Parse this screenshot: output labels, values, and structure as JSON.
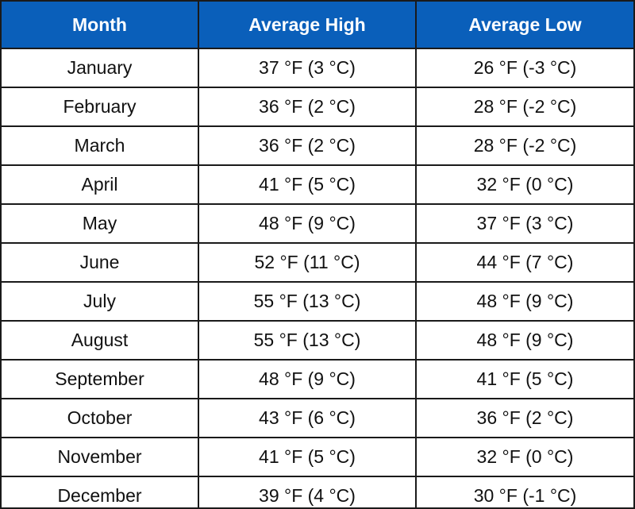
{
  "table": {
    "headers": [
      "Month",
      "Average High",
      "Average Low"
    ],
    "header_bg": "#0a5fba",
    "rows": [
      [
        "January",
        "37 °F (3 °C)",
        "26 °F (-3 °C)"
      ],
      [
        "February",
        "36 °F (2 °C)",
        "28 °F (-2 °C)"
      ],
      [
        "March",
        "36 °F (2 °C)",
        "28 °F (-2 °C)"
      ],
      [
        "April",
        "41 °F (5 °C)",
        "32 °F (0 °C)"
      ],
      [
        "May",
        "48 °F (9 °C)",
        "37 °F (3 °C)"
      ],
      [
        "June",
        "52 °F (11 °C)",
        "44 °F (7 °C)"
      ],
      [
        "July",
        "55 °F (13 °C)",
        "48 °F (9 °C)"
      ],
      [
        "August",
        "55 °F (13 °C)",
        "48 °F (9 °C)"
      ],
      [
        "September",
        "48 °F (9 °C)",
        "41 °F (5 °C)"
      ],
      [
        "October",
        "43 °F (6 °C)",
        "36 °F (2 °C)"
      ],
      [
        "November",
        "41 °F (5 °C)",
        "32 °F (0 °C)"
      ],
      [
        "December",
        "39 °F (4 °C)",
        "30 °F (-1 °C)"
      ]
    ]
  }
}
